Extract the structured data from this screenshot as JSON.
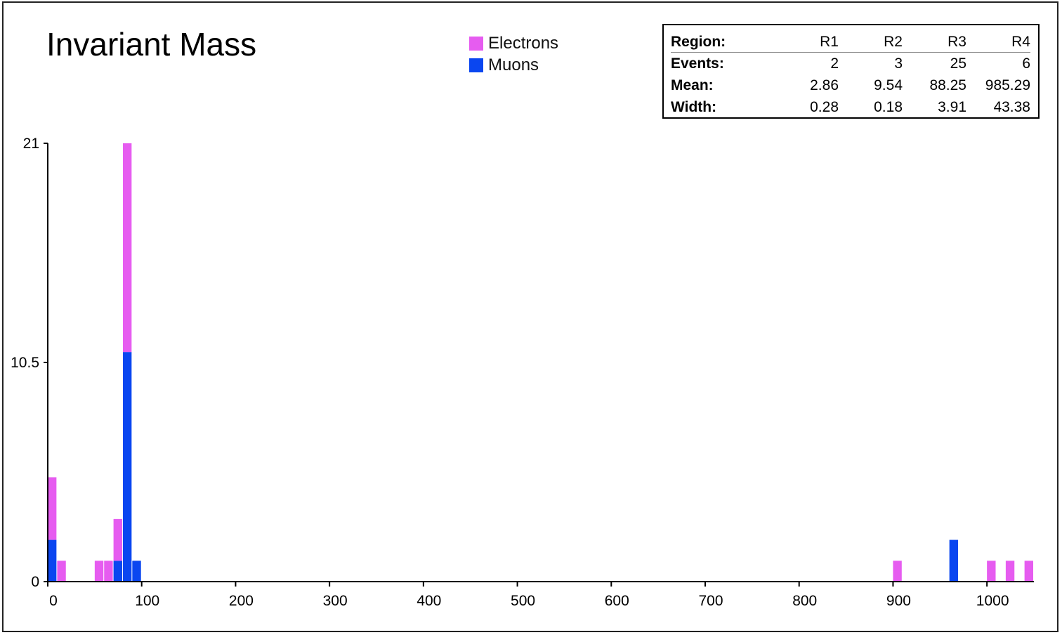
{
  "chart_data": {
    "type": "bar",
    "stacked": true,
    "title": "Invariant Mass",
    "xlabel": "",
    "ylabel": "",
    "xlim": [
      0,
      1050
    ],
    "ylim": [
      0,
      21
    ],
    "bin_width": 10,
    "x_ticks": [
      0,
      100,
      200,
      300,
      400,
      500,
      600,
      700,
      800,
      900,
      1000
    ],
    "y_ticks": [
      0,
      10.5,
      21
    ],
    "y_tick_labels": [
      "0",
      "10.5",
      "21"
    ],
    "legend_position": "top-center",
    "series": [
      {
        "name": "Muons",
        "color": "#0a46f0",
        "bins": [
          {
            "x": 0,
            "value": 2
          },
          {
            "x": 70,
            "value": 1
          },
          {
            "x": 80,
            "value": 11
          },
          {
            "x": 90,
            "value": 1
          },
          {
            "x": 960,
            "value": 2
          }
        ]
      },
      {
        "name": "Electrons",
        "color": "#e65cf0",
        "bins": [
          {
            "x": 0,
            "value": 3
          },
          {
            "x": 10,
            "value": 1
          },
          {
            "x": 50,
            "value": 1
          },
          {
            "x": 60,
            "value": 1
          },
          {
            "x": 70,
            "value": 2
          },
          {
            "x": 80,
            "value": 10
          },
          {
            "x": 900,
            "value": 1
          },
          {
            "x": 1000,
            "value": 1
          },
          {
            "x": 1020,
            "value": 1
          },
          {
            "x": 1040,
            "value": 1
          }
        ]
      }
    ]
  },
  "legend": [
    {
      "label": "Electrons",
      "color": "#e65cf0"
    },
    {
      "label": "Muons",
      "color": "#0a46f0"
    }
  ],
  "stats": {
    "headers": [
      "Region:",
      "R1",
      "R2",
      "R3",
      "R4"
    ],
    "rows": [
      {
        "label": "Events:",
        "values": [
          "2",
          "3",
          "25",
          "6"
        ]
      },
      {
        "label": "Mean:",
        "values": [
          "2.86",
          "9.54",
          "88.25",
          "985.29"
        ]
      },
      {
        "label": "Width:",
        "values": [
          "0.28",
          "0.18",
          "3.91",
          "43.38"
        ]
      }
    ]
  }
}
